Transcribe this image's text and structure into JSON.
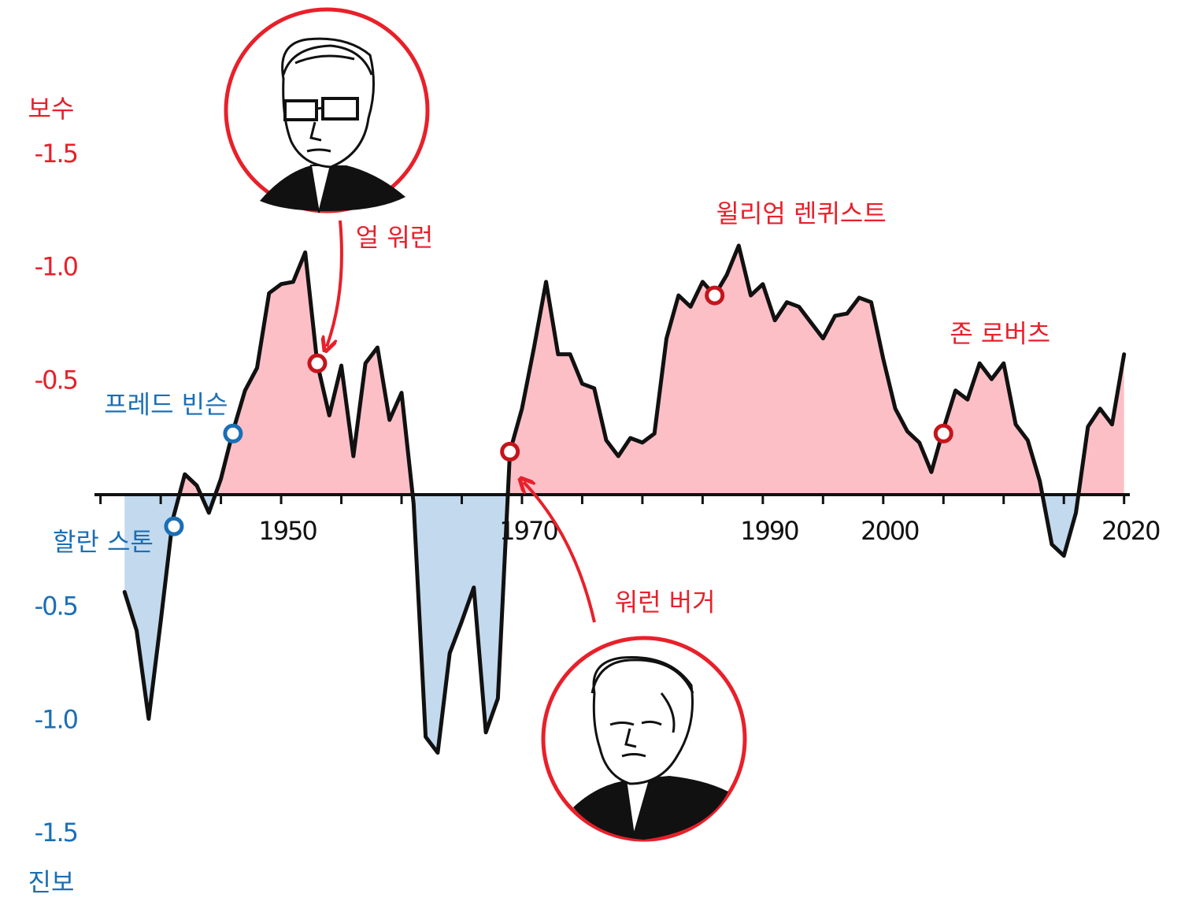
{
  "chart_data": {
    "type": "area-line",
    "ylabel_top": "보수",
    "ylabel_bottom": "진보",
    "x": [
      1937,
      1938,
      1939,
      1940,
      1941,
      1942,
      1943,
      1944,
      1945,
      1946,
      1947,
      1948,
      1949,
      1950,
      1951,
      1952,
      1953,
      1954,
      1955,
      1956,
      1957,
      1958,
      1959,
      1960,
      1961,
      1962,
      1963,
      1964,
      1965,
      1966,
      1967,
      1968,
      1969,
      1970,
      1971,
      1972,
      1973,
      1974,
      1975,
      1976,
      1977,
      1978,
      1979,
      1980,
      1981,
      1982,
      1983,
      1984,
      1985,
      1986,
      1987,
      1988,
      1989,
      1990,
      1991,
      1992,
      1993,
      1994,
      1995,
      1996,
      1997,
      1998,
      1999,
      2000,
      2001,
      2002,
      2003,
      2004,
      2005,
      2006,
      2007,
      2008,
      2009,
      2010,
      2011,
      2012,
      2013,
      2014,
      2015,
      2016,
      2017,
      2018,
      2019,
      2020
    ],
    "series": [
      {
        "color": "#111111",
        "positive_fill": "#fdbfc6",
        "negative_fill": "#c2d9ee",
        "values": [
          -0.43,
          -0.6,
          -0.99,
          -0.56,
          -0.11,
          0.09,
          0.04,
          -0.08,
          0.07,
          0.28,
          0.46,
          0.56,
          0.89,
          0.93,
          0.94,
          1.07,
          0.58,
          0.35,
          0.57,
          0.17,
          0.58,
          0.65,
          0.33,
          0.45,
          -0.04,
          -1.07,
          -1.14,
          -0.7,
          -0.56,
          -0.41,
          -1.05,
          -0.9,
          0.19,
          0.38,
          0.65,
          0.94,
          0.62,
          0.62,
          0.49,
          0.47,
          0.24,
          0.17,
          0.25,
          0.23,
          0.27,
          0.69,
          0.88,
          0.83,
          0.94,
          0.88,
          0.97,
          1.1,
          0.88,
          0.93,
          0.77,
          0.85,
          0.83,
          0.76,
          0.69,
          0.79,
          0.8,
          0.87,
          0.85,
          0.6,
          0.38,
          0.28,
          0.23,
          0.1,
          0.29,
          0.46,
          0.42,
          0.58,
          0.51,
          0.58,
          0.31,
          0.24,
          0.06,
          -0.22,
          -0.27,
          -0.08,
          0.3,
          0.38,
          0.31,
          0.62
        ]
      }
    ],
    "xlim": [
      1934.5,
      2021
    ],
    "xticks": [
      1950,
      1970,
      1990,
      2000,
      2020
    ],
    "xminor_ticks": [
      1935,
      1940,
      1945,
      1955,
      1960,
      1965,
      1975,
      1980,
      1985,
      1995,
      2005,
      2010,
      2015
    ],
    "ylim": [
      -1.75,
      1.75
    ],
    "yticks": [
      {
        "value": 1.5,
        "label": "-1.5"
      },
      {
        "value": 1,
        "label": "-1.0"
      },
      {
        "value": 0.5,
        "label": "-0.5"
      },
      -0.5,
      {
        "value": -1,
        "label": "-1.0"
      },
      -1.5
    ],
    "positive_color": "#e8202a",
    "negative_color": "#1a6fb5",
    "positive_grid_color": "#f6aab2",
    "negative_grid_color": "#b9d4ec",
    "annotations": [
      {
        "text": "할란 스톤",
        "x": 1941.1,
        "y": -0.14,
        "color": "#1a6fb5"
      },
      {
        "text": "프레드 빈슨",
        "x": 1946,
        "y": 0.27,
        "color": "#1a6fb5"
      },
      {
        "text": "얼 워런",
        "x": 1953,
        "y": 0.58,
        "color": "#e8202a"
      },
      {
        "text": "워런 버거",
        "x": 1969,
        "y": 0.19,
        "color": "#e8202a"
      },
      {
        "text": "윌리엄 렌퀴스트",
        "x": 1986,
        "y": 0.88,
        "color": "#e8202a"
      },
      {
        "text": "존 로버츠",
        "x": 2005,
        "y": 0.27,
        "color": "#e8202a"
      }
    ]
  }
}
